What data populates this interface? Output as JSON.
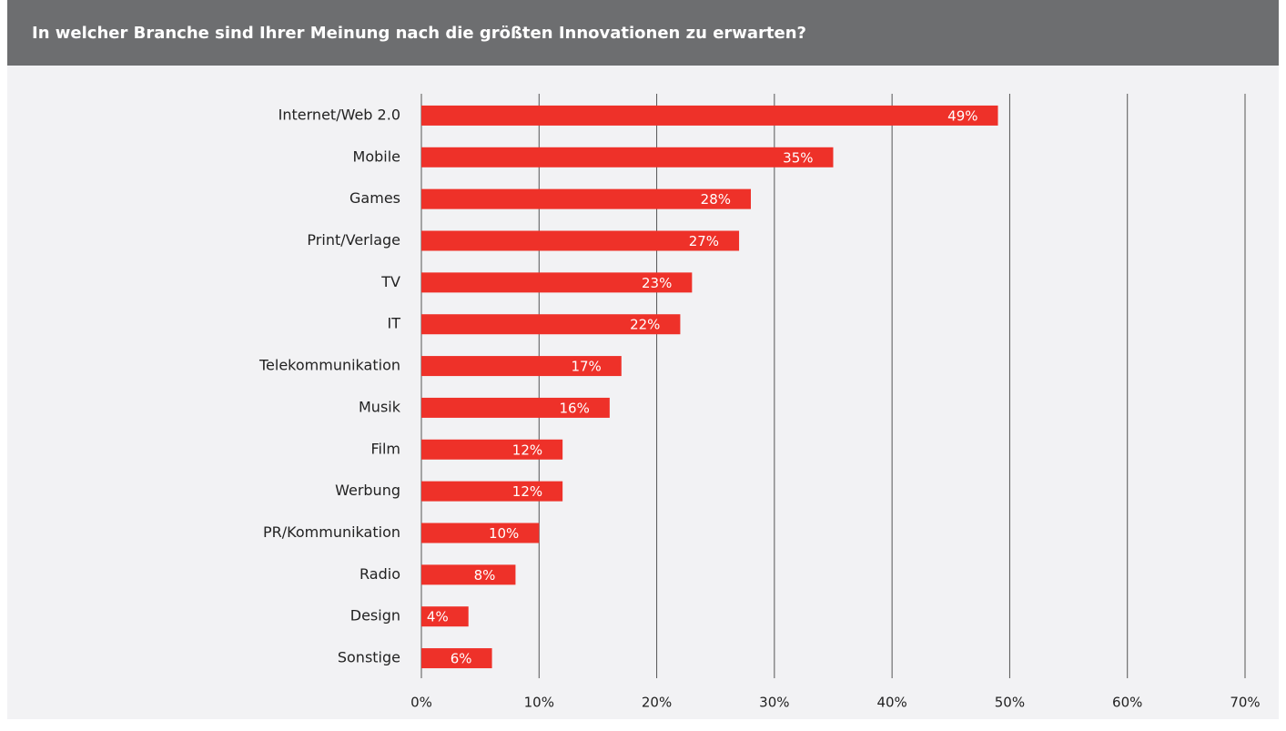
{
  "chart_data": {
    "type": "bar",
    "orientation": "horizontal",
    "title": "In welcher Branche sind Ihrer Meinung nach die größten Innovationen zu erwarten?",
    "categories": [
      "Internet/Web 2.0",
      "Mobile",
      "Games",
      "Print/Verlage",
      "TV",
      "IT",
      "Telekommunikation",
      "Musik",
      "Film",
      "Werbung",
      "PR/Kommunikation",
      "Radio",
      "Design",
      "Sonstige"
    ],
    "values": [
      49,
      35,
      28,
      27,
      23,
      22,
      17,
      16,
      12,
      12,
      10,
      8,
      4,
      6
    ],
    "value_labels": [
      "49%",
      "35%",
      "28%",
      "27%",
      "23%",
      "22%",
      "17%",
      "16%",
      "12%",
      "12%",
      "10%",
      "8%",
      "4%",
      "6%"
    ],
    "color": "#ee3129",
    "xlim": [
      0,
      70
    ],
    "xticks": [
      {
        "value": 0,
        "label": "0%"
      },
      {
        "value": 10,
        "label": "10%"
      },
      {
        "value": 20,
        "label": "20%"
      },
      {
        "value": 30,
        "label": "30%"
      },
      {
        "value": 40,
        "label": "40%"
      },
      {
        "value": 50,
        "label": "50%"
      },
      {
        "value": 60,
        "label": "60%"
      },
      {
        "value": 70,
        "label": "70%"
      }
    ],
    "grid": true
  }
}
